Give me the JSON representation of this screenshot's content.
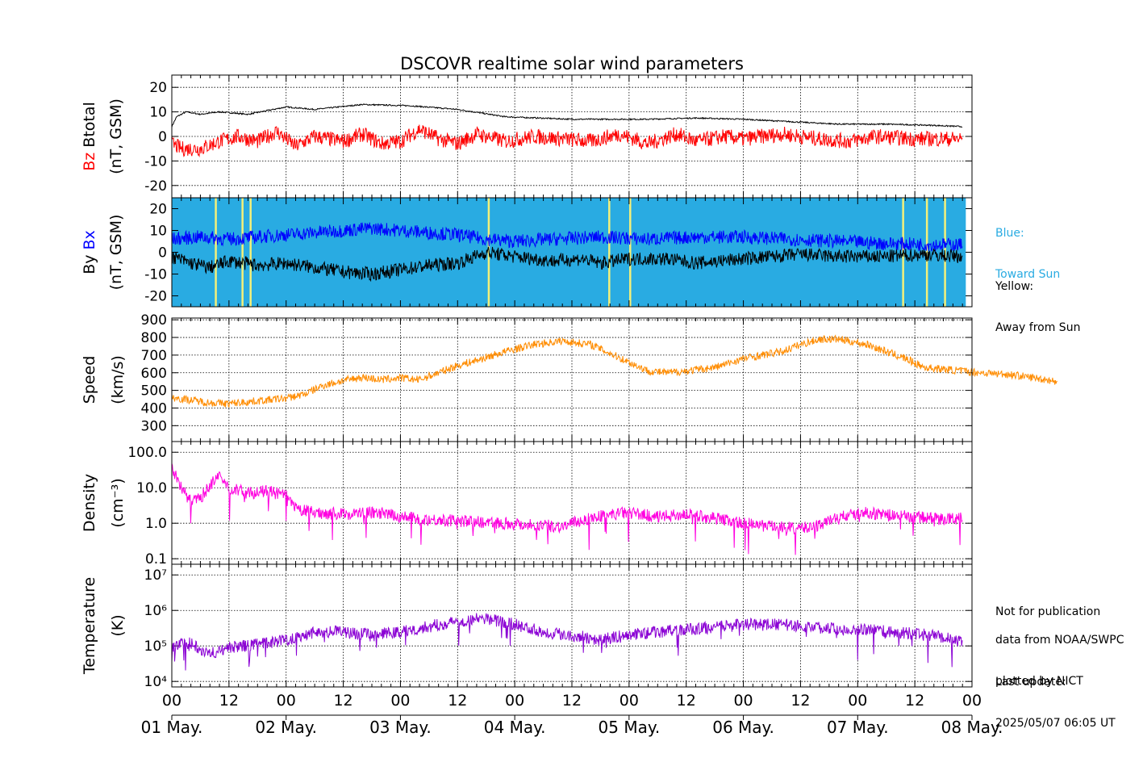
{
  "title": "DSCOVR realtime solar wind parameters",
  "side_notes": {
    "blue_line1": "Blue:",
    "blue_line2": "Toward Sun",
    "yellow_line1": "Yellow:",
    "yellow_line2": "Away from Sun",
    "not_pub": "Not for publication",
    "source1": "data from NOAA/SWPC",
    "source2": "plotted by NICT",
    "update_label": "Last update:",
    "update_value": "2025/05/07 06:05 UT"
  },
  "colors": {
    "btotal": "#000000",
    "bz": "#ff0000",
    "bx": "#0000ff",
    "by": "#000000",
    "toward_sun": "#29abe2",
    "away_from_sun": "#f3f07a",
    "speed": "#ff8c00",
    "density": "#ff00e0",
    "temperature": "#8a00d4"
  },
  "chart_data": [
    {
      "type": "line",
      "panel": "magnetic-field-total",
      "ylabel_parts": [
        "Bz",
        "Btotal",
        "(nT, GSM)"
      ],
      "ylim": [
        -25,
        25
      ],
      "yticks": [
        20,
        10,
        0,
        -10,
        -20
      ],
      "grid": true,
      "x_range_hours": [
        0,
        168
      ],
      "series": [
        {
          "name": "Btotal",
          "points": [
            [
              0,
              4
            ],
            [
              1,
              8
            ],
            [
              3,
              10
            ],
            [
              6,
              9
            ],
            [
              10,
              10
            ],
            [
              16,
              9
            ],
            [
              24,
              12
            ],
            [
              30,
              11
            ],
            [
              40,
              13
            ],
            [
              50,
              12.5
            ],
            [
              60,
              11
            ],
            [
              70,
              8
            ],
            [
              84,
              7
            ],
            [
              100,
              7
            ],
            [
              110,
              7.5
            ],
            [
              120,
              7
            ],
            [
              130,
              6
            ],
            [
              140,
              5
            ],
            [
              150,
              5
            ],
            [
              160,
              4.5
            ],
            [
              166,
              4
            ]
          ]
        },
        {
          "name": "Bz",
          "points": [
            [
              0,
              -3
            ],
            [
              2,
              -5
            ],
            [
              6,
              -5
            ],
            [
              10,
              -2
            ],
            [
              14,
              0
            ],
            [
              18,
              -2
            ],
            [
              22,
              2
            ],
            [
              26,
              -4
            ],
            [
              30,
              0
            ],
            [
              36,
              -2
            ],
            [
              40,
              1
            ],
            [
              44,
              -3
            ],
            [
              48,
              -2
            ],
            [
              52,
              3
            ],
            [
              56,
              -1
            ],
            [
              60,
              -3
            ],
            [
              64,
              1
            ],
            [
              70,
              -2
            ],
            [
              76,
              0
            ],
            [
              82,
              -1
            ],
            [
              88,
              -2
            ],
            [
              94,
              1
            ],
            [
              100,
              -3
            ],
            [
              106,
              1
            ],
            [
              110,
              -2
            ],
            [
              116,
              0
            ],
            [
              120,
              -1
            ],
            [
              128,
              1
            ],
            [
              136,
              -1
            ],
            [
              142,
              -2
            ],
            [
              148,
              0
            ],
            [
              156,
              -1
            ],
            [
              162,
              -1
            ],
            [
              166,
              -1
            ]
          ]
        }
      ]
    },
    {
      "type": "line",
      "panel": "magnetic-field-xy",
      "ylabel_parts": [
        "By",
        "Bx",
        "(nT, GSM)"
      ],
      "ylim": [
        -25,
        25
      ],
      "yticks": [
        20,
        10,
        0,
        -10,
        -20
      ],
      "grid": false,
      "x_range_hours": [
        0,
        168
      ],
      "sector_background": "Toward Sun",
      "away_from_sun_hours": [
        9.2,
        14.8,
        16.5,
        66.5,
        91.8,
        96.2,
        153.5,
        158.5,
        162.3
      ],
      "series": [
        {
          "name": "Bx",
          "points": [
            [
              0,
              6
            ],
            [
              6,
              7
            ],
            [
              12,
              6
            ],
            [
              18,
              7
            ],
            [
              24,
              8
            ],
            [
              30,
              9
            ],
            [
              36,
              10
            ],
            [
              42,
              11
            ],
            [
              48,
              10
            ],
            [
              54,
              9
            ],
            [
              60,
              8
            ],
            [
              66,
              6
            ],
            [
              72,
              5
            ],
            [
              80,
              6
            ],
            [
              90,
              7
            ],
            [
              100,
              6
            ],
            [
              110,
              7
            ],
            [
              120,
              7
            ],
            [
              130,
              6
            ],
            [
              140,
              5
            ],
            [
              150,
              4
            ],
            [
              160,
              3.5
            ],
            [
              166,
              3.5
            ]
          ]
        },
        {
          "name": "By",
          "points": [
            [
              0,
              -2
            ],
            [
              4,
              -5
            ],
            [
              8,
              -7
            ],
            [
              12,
              -4
            ],
            [
              18,
              -6
            ],
            [
              24,
              -5
            ],
            [
              30,
              -7
            ],
            [
              36,
              -9
            ],
            [
              42,
              -10
            ],
            [
              48,
              -8
            ],
            [
              54,
              -6
            ],
            [
              60,
              -5
            ],
            [
              66,
              0
            ],
            [
              72,
              -2
            ],
            [
              80,
              -4
            ],
            [
              86,
              -3
            ],
            [
              90,
              -5
            ],
            [
              96,
              -3
            ],
            [
              104,
              -3
            ],
            [
              110,
              -5
            ],
            [
              120,
              -3
            ],
            [
              126,
              -2
            ],
            [
              132,
              -1
            ],
            [
              140,
              -2
            ],
            [
              150,
              -2
            ],
            [
              158,
              -1
            ],
            [
              166,
              -2
            ]
          ]
        }
      ]
    },
    {
      "type": "line",
      "panel": "speed",
      "ylabel_parts": [
        "Speed",
        "(km/s)"
      ],
      "ylim": [
        210,
        910
      ],
      "yticks": [
        900,
        800,
        700,
        600,
        500,
        400,
        300
      ],
      "grid": true,
      "x_range_hours": [
        0,
        168
      ],
      "series": [
        {
          "name": "Speed",
          "points": [
            [
              0,
              460
            ],
            [
              4,
              445
            ],
            [
              8,
              430
            ],
            [
              12,
              425
            ],
            [
              18,
              440
            ],
            [
              24,
              455
            ],
            [
              28,
              480
            ],
            [
              32,
              530
            ],
            [
              36,
              555
            ],
            [
              40,
              575
            ],
            [
              44,
              560
            ],
            [
              48,
              570
            ],
            [
              52,
              560
            ],
            [
              56,
              600
            ],
            [
              60,
              640
            ],
            [
              64,
              670
            ],
            [
              70,
              720
            ],
            [
              76,
              760
            ],
            [
              82,
              780
            ],
            [
              88,
              760
            ],
            [
              92,
              710
            ],
            [
              96,
              660
            ],
            [
              100,
              610
            ],
            [
              104,
              600
            ],
            [
              108,
              610
            ],
            [
              114,
              630
            ],
            [
              120,
              680
            ],
            [
              124,
              700
            ],
            [
              128,
              720
            ],
            [
              132,
              760
            ],
            [
              136,
              790
            ],
            [
              140,
              790
            ],
            [
              146,
              760
            ],
            [
              150,
              720
            ],
            [
              154,
              680
            ],
            [
              158,
              630
            ],
            [
              162,
              620
            ],
            [
              166,
              610
            ],
            [
              170,
              600
            ],
            [
              176,
              590
            ],
            [
              180,
              575
            ],
            [
              184,
              560
            ],
            [
              186,
              545
            ]
          ]
        }
      ]
    },
    {
      "type": "line",
      "panel": "density",
      "ylabel_parts": [
        "Density",
        "(cm⁻³)"
      ],
      "scale": "log",
      "ylim": [
        0.07,
        200
      ],
      "yticks": [
        100.0,
        10.0,
        1.0,
        0.1
      ],
      "ytick_labels": [
        "100.0",
        "10.0",
        "1.0",
        "0.1"
      ],
      "grid": true,
      "x_range_hours": [
        0,
        168
      ],
      "series": [
        {
          "name": "Density",
          "points": [
            [
              0,
              40
            ],
            [
              2,
              10
            ],
            [
              4,
              4
            ],
            [
              6,
              5
            ],
            [
              8,
              12
            ],
            [
              10,
              20
            ],
            [
              12,
              10
            ],
            [
              16,
              7
            ],
            [
              20,
              8
            ],
            [
              24,
              6
            ],
            [
              26,
              2.5
            ],
            [
              30,
              2
            ],
            [
              36,
              1.8
            ],
            [
              42,
              2
            ],
            [
              46,
              1.7
            ],
            [
              52,
              1.3
            ],
            [
              58,
              1.2
            ],
            [
              64,
              1.1
            ],
            [
              70,
              1
            ],
            [
              76,
              0.9
            ],
            [
              82,
              0.8
            ],
            [
              86,
              1.2
            ],
            [
              90,
              1.6
            ],
            [
              96,
              2
            ],
            [
              102,
              1.5
            ],
            [
              108,
              1.8
            ],
            [
              114,
              1.4
            ],
            [
              120,
              1
            ],
            [
              126,
              0.8
            ],
            [
              132,
              0.7
            ],
            [
              136,
              0.9
            ],
            [
              140,
              1.5
            ],
            [
              146,
              2
            ],
            [
              150,
              1.7
            ],
            [
              156,
              1.5
            ],
            [
              162,
              1.3
            ],
            [
              166,
              1.4
            ]
          ]
        }
      ]
    },
    {
      "type": "line",
      "panel": "temperature",
      "ylabel_parts": [
        "Temperature",
        "(K)"
      ],
      "scale": "log",
      "ylim": [
        7000,
        20000000
      ],
      "yticks": [
        10000000,
        1000000,
        100000,
        10000
      ],
      "ytick_labels": [
        "10⁷",
        "10⁶",
        "10⁵",
        "10⁴"
      ],
      "grid": true,
      "x_range_hours": [
        0,
        168
      ],
      "series": [
        {
          "name": "Temperature",
          "points": [
            [
              0,
              100000
            ],
            [
              4,
              120000
            ],
            [
              8,
              60000
            ],
            [
              12,
              90000
            ],
            [
              18,
              110000
            ],
            [
              24,
              150000
            ],
            [
              30,
              250000
            ],
            [
              36,
              250000
            ],
            [
              42,
              200000
            ],
            [
              48,
              250000
            ],
            [
              54,
              350000
            ],
            [
              60,
              500000
            ],
            [
              66,
              600000
            ],
            [
              72,
              400000
            ],
            [
              78,
              250000
            ],
            [
              84,
              200000
            ],
            [
              90,
              150000
            ],
            [
              96,
              200000
            ],
            [
              102,
              250000
            ],
            [
              110,
              300000
            ],
            [
              120,
              400000
            ],
            [
              128,
              400000
            ],
            [
              134,
              350000
            ],
            [
              140,
              300000
            ],
            [
              146,
              300000
            ],
            [
              150,
              250000
            ],
            [
              156,
              220000
            ],
            [
              162,
              180000
            ],
            [
              166,
              120000
            ]
          ]
        }
      ]
    }
  ],
  "x_axis": {
    "hour_ticks": [
      "00",
      "12",
      "00",
      "12",
      "00",
      "12",
      "00",
      "12",
      "00",
      "12",
      "00",
      "12",
      "00",
      "12",
      "00"
    ],
    "day_labels": [
      "01 May.",
      "02 May.",
      "03 May.",
      "04 May.",
      "05 May.",
      "06 May.",
      "07 May.",
      "08 May."
    ]
  }
}
